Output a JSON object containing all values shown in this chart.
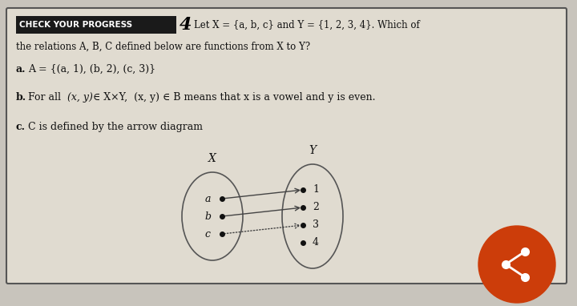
{
  "bg_color": "#c8c4bc",
  "card_bg": "#e0dbd0",
  "card_border": "#555555",
  "header_bg": "#1a1a1a",
  "header_text": "CHECK YOUR PROGRESS",
  "header_num": "4",
  "title_line1": "Let X = {a, b, c} and Y = {1, 2, 3, 4}. Which of",
  "title_line2": "the relations A, B, C defined below are functions from X to Y?",
  "part_a": "A = {(a, 1), (b, 2), (c, 3)}",
  "part_c_label": "C is defined by the arrow diagram",
  "X_label": "X",
  "Y_label": "Y",
  "X_elements": [
    "a",
    "b",
    "c"
  ],
  "Y_elements": [
    "1",
    "2",
    "3",
    "4"
  ],
  "arrow_color": "#444444",
  "dot_color": "#111111",
  "ellipse_color": "#555555",
  "share_btn_color": "#cc3d0a",
  "font_color": "#111111"
}
